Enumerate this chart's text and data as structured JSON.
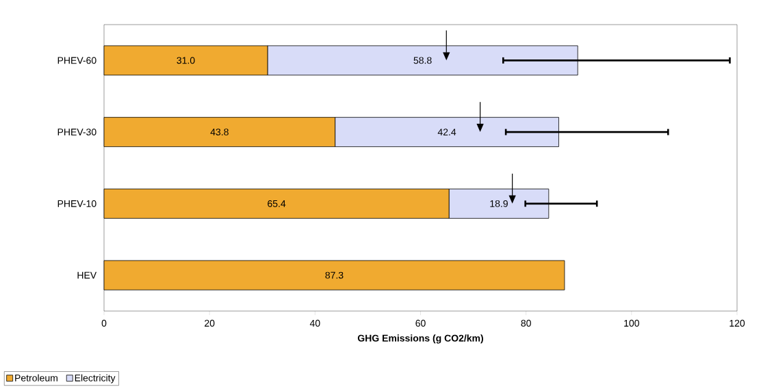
{
  "chart_data": {
    "type": "bar",
    "orientation": "horizontal",
    "stacked": true,
    "categories": [
      "PHEV-60",
      "PHEV-30",
      "PHEV-10",
      "HEV"
    ],
    "series": [
      {
        "name": "Petroleum",
        "color": "#f0aa30",
        "values": [
          31.0,
          43.8,
          65.4,
          87.3
        ],
        "value_labels": [
          "31.0",
          "43.8",
          "65.4",
          "87.3"
        ]
      },
      {
        "name": "Electricity",
        "color": "#d8dcf8",
        "values": [
          58.8,
          42.4,
          18.9,
          null
        ],
        "value_labels": [
          "58.8",
          "42.4",
          "18.9",
          null
        ],
        "errors": [
          [
            75.5,
            118.8
          ],
          [
            76.0,
            107.1
          ],
          [
            79.7,
            93.6
          ],
          null
        ]
      },
      {
        "type": "scatter",
        "marker": "triangle",
        "color": "#000000",
        "values": [
          64.9,
          71.3,
          77.4,
          null
        ]
      }
    ],
    "xlabel": "GHG Emissions (g CO2/km)",
    "xlim": [
      0,
      120
    ],
    "xticks": [
      0,
      20,
      40,
      60,
      80,
      100,
      120
    ],
    "legend": "bottom left"
  }
}
